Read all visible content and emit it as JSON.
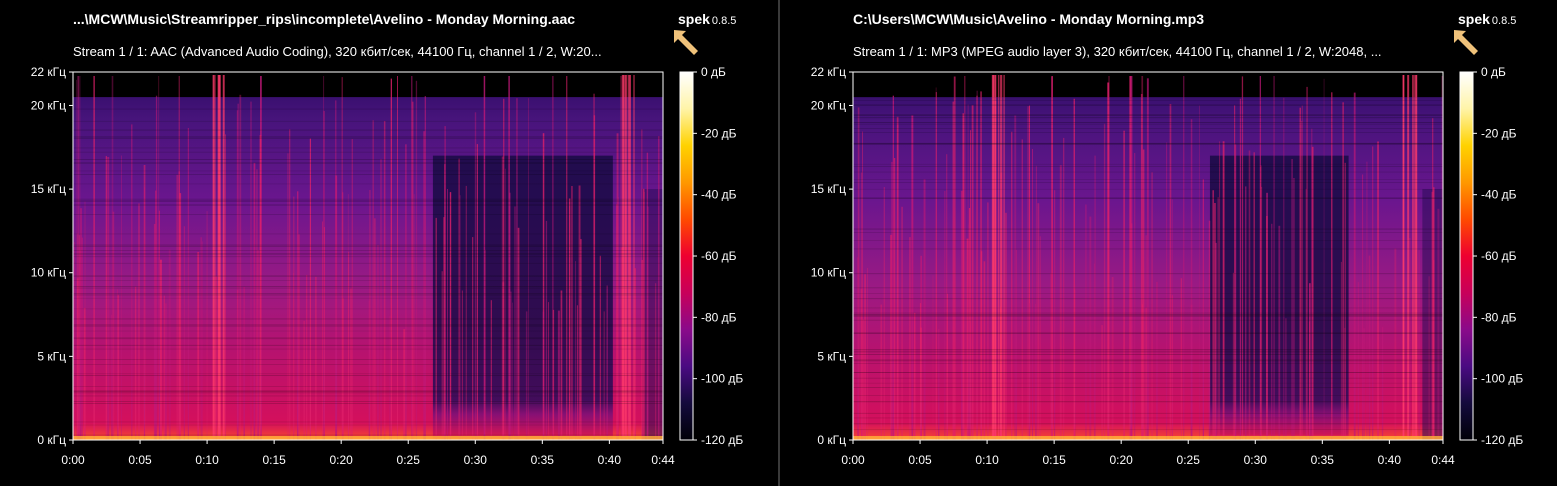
{
  "panels": [
    {
      "title": "...\\MCW\\Music\\Streamripper_rips\\incomplete\\Avelino - Monday Morning.aac",
      "stream_info": "Stream 1 / 1: AAC (Advanced Audio Coding), 320 кбит/сек, 44100 Гц, channel 1 / 2, W:20...",
      "notch_start": 0.61,
      "notch_end": 0.915
    },
    {
      "title": "C:\\Users\\MCW\\Music\\Avelino - Monday Morning.mp3",
      "stream_info": "Stream 1 / 1: MP3 (MPEG audio layer 3), 320 кбит/сек, 44100 Гц, channel 1 / 2, W:2048, ...",
      "notch_start": 0.605,
      "notch_end": 0.84
    }
  ],
  "logo": {
    "brand": "spek",
    "version": "0.8.5",
    "icon": "spek-arrow-icon",
    "arrow_color": "#f0c27a"
  },
  "freq_axis": {
    "labels": [
      "0 кГц",
      "5 кГц",
      "10 кГц",
      "15 кГц",
      "20 кГц",
      "22 кГц"
    ],
    "values_khz": [
      0,
      5,
      10,
      15,
      20,
      22
    ]
  },
  "time_axis": {
    "labels": [
      "0:00",
      "0:05",
      "0:10",
      "0:15",
      "0:20",
      "0:25",
      "0:30",
      "0:35",
      "0:40",
      "0:44"
    ],
    "values_s": [
      0,
      5,
      10,
      15,
      20,
      25,
      30,
      35,
      40,
      44
    ]
  },
  "db_scale": {
    "labels": [
      "0 дБ",
      "-20 дБ",
      "-40 дБ",
      "-60 дБ",
      "-80 дБ",
      "-100 дБ",
      "-120 дБ"
    ],
    "values_db": [
      0,
      -20,
      -40,
      -60,
      -80,
      -100,
      -120
    ],
    "colors": [
      "#ffffff",
      "#fff4a8",
      "#ffd200",
      "#ff9800",
      "#ff4a00",
      "#ee0030",
      "#c8005a",
      "#8a0a8a",
      "#4a0a82",
      "#140a3c",
      "#000008"
    ]
  },
  "cutoff_khz": 20.5,
  "duration_s": 44
}
